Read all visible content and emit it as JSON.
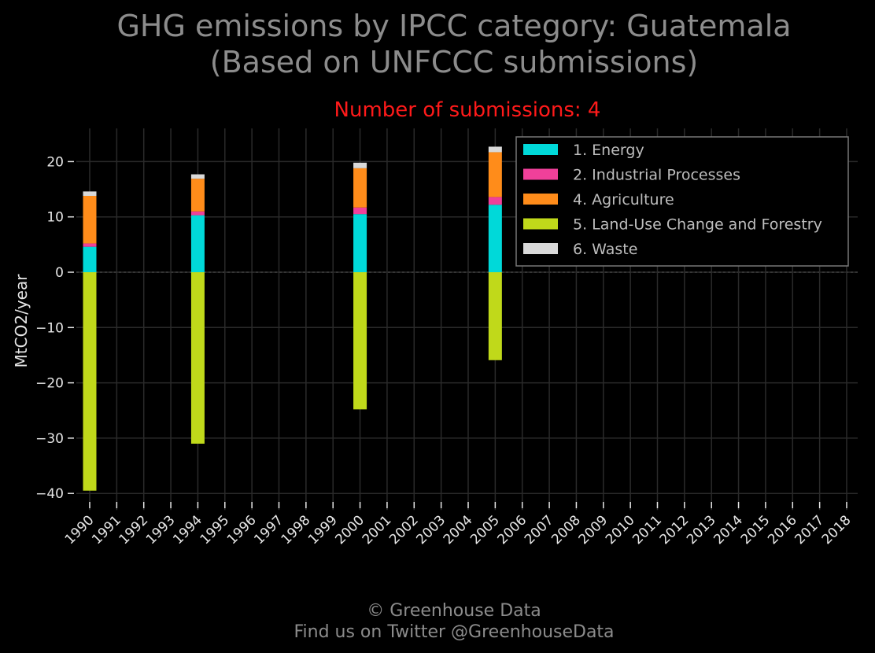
{
  "title_lines": [
    "GHG emissions by IPCC category: Guatemala",
    "(Based on UNFCCC submissions)"
  ],
  "subtitle": "Number of submissions: 4",
  "footer_lines": [
    "© Greenhouse Data",
    "Find us on Twitter @GreenhouseData"
  ],
  "colors": {
    "background": "#000000",
    "grid": "#2a2a2a",
    "text": "#e6e6e6",
    "title": "#8c8c8c",
    "subtitle": "#ff1a1a",
    "legend_border": "#777777",
    "legend_text": "#bdbdbd"
  },
  "chart_data": {
    "type": "bar",
    "stacked": true,
    "title": "GHG emissions by IPCC category: Guatemala (Based on UNFCCC submissions)",
    "subtitle": "Number of submissions: 4",
    "xlabel": "",
    "ylabel": "MtCO2/year",
    "ylim": [
      -43,
      26
    ],
    "yticks": [
      20,
      10,
      0,
      -10,
      -20,
      -30,
      -40
    ],
    "ytick_labels": [
      "20",
      "10",
      "0",
      "−10",
      "−20",
      "−30",
      "−40"
    ],
    "grid": true,
    "legend_position": "top-right",
    "categories": [
      "1990",
      "1991",
      "1992",
      "1993",
      "1994",
      "1995",
      "1996",
      "1997",
      "1998",
      "1999",
      "2000",
      "2001",
      "2002",
      "2003",
      "2004",
      "2005",
      "2006",
      "2007",
      "2008",
      "2009",
      "2010",
      "2011",
      "2012",
      "2013",
      "2014",
      "2015",
      "2016",
      "2017",
      "2018"
    ],
    "series": [
      {
        "name": "1. Energy",
        "color": "#00d9d9",
        "values": [
          4.6,
          null,
          null,
          null,
          10.3,
          null,
          null,
          null,
          null,
          null,
          10.5,
          null,
          null,
          null,
          null,
          12.2,
          null,
          null,
          null,
          null,
          null,
          null,
          null,
          null,
          null,
          null,
          null,
          null,
          null
        ]
      },
      {
        "name": "2. Industrial Processes",
        "color": "#f0409a",
        "values": [
          0.6,
          null,
          null,
          null,
          0.7,
          null,
          null,
          null,
          null,
          null,
          1.2,
          null,
          null,
          null,
          null,
          1.4,
          null,
          null,
          null,
          null,
          null,
          null,
          null,
          null,
          null,
          null,
          null,
          null,
          null
        ]
      },
      {
        "name": "4. Agriculture",
        "color": "#ff8c1a",
        "values": [
          8.6,
          null,
          null,
          null,
          5.9,
          null,
          null,
          null,
          null,
          null,
          7.1,
          null,
          null,
          null,
          null,
          8.1,
          null,
          null,
          null,
          null,
          null,
          null,
          null,
          null,
          null,
          null,
          null,
          null,
          null
        ]
      },
      {
        "name": "5. Land-Use Change and Forestry",
        "color": "#c0d91a",
        "values": [
          -39.5,
          null,
          null,
          null,
          -31.0,
          null,
          null,
          null,
          null,
          null,
          -24.8,
          null,
          null,
          null,
          null,
          -15.9,
          null,
          null,
          null,
          null,
          null,
          null,
          null,
          null,
          null,
          null,
          null,
          null,
          null
        ]
      },
      {
        "name": "6. Waste",
        "color": "#d9d9d9",
        "values": [
          0.8,
          null,
          null,
          null,
          0.8,
          null,
          null,
          null,
          null,
          null,
          1.0,
          null,
          null,
          null,
          null,
          1.0,
          null,
          null,
          null,
          null,
          null,
          null,
          null,
          null,
          null,
          null,
          null,
          null,
          null
        ]
      }
    ]
  }
}
